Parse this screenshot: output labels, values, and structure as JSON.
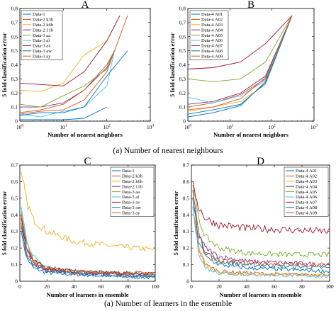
{
  "captions": {
    "top": "(a) Number of nearest neighbours",
    "bottom": "(a) Number of learners in the ensemble"
  },
  "chart_data": [
    {
      "panel": "A",
      "type": "line",
      "title": "A",
      "xlabel": "Number of nearest neighbors",
      "ylabel": "5 fold classification error",
      "xscale": "log",
      "xlim": [
        1,
        1000
      ],
      "ylim": [
        0,
        0.8
      ],
      "xticks": [
        1,
        10,
        100,
        1000
      ],
      "xtick_labels": [
        "10^0",
        "10^1",
        "10^2",
        "10^3"
      ],
      "yticks": [
        0,
        0.1,
        0.2,
        0.3,
        0.4,
        0.5,
        0.6,
        0.7,
        0.8
      ],
      "ytick_labels": [
        "0",
        "0.1",
        "0.2",
        "0.3",
        "0.4",
        "0.5",
        "0.6",
        "0.7",
        "0.8"
      ],
      "legend_position": "top-left",
      "series": [
        {
          "name": "Data-1",
          "color": "#0072BD",
          "x": [
            1,
            3,
            10,
            30,
            100
          ],
          "y": [
            0.01,
            0.01,
            0.01,
            0.02,
            0.1
          ]
        },
        {
          "name": "Data-2 k3b",
          "color": "#D95319",
          "x": [
            1,
            3,
            10,
            30,
            100,
            300
          ],
          "y": [
            0.05,
            0.07,
            0.08,
            0.15,
            0.35,
            0.75
          ]
        },
        {
          "name": "Data-2 k6b",
          "color": "#EDB120",
          "x": [
            1,
            3,
            10,
            30,
            100,
            200
          ],
          "y": [
            0.22,
            0.21,
            0.27,
            0.47,
            0.57,
            0.75
          ]
        },
        {
          "name": "Data-2 11b",
          "color": "#7E2F8E",
          "x": [
            1,
            3,
            10,
            30,
            100,
            150
          ],
          "y": [
            0.1,
            0.1,
            0.13,
            0.22,
            0.38,
            0.5
          ]
        },
        {
          "name": "Data-3 aa",
          "color": "#77AC30",
          "x": [
            1,
            3,
            10,
            30,
            100,
            150
          ],
          "y": [
            0.12,
            0.1,
            0.18,
            0.25,
            0.37,
            0.5
          ]
        },
        {
          "name": "Data-3 al",
          "color": "#4DBEEE",
          "x": [
            1,
            3,
            10,
            30,
            100,
            150
          ],
          "y": [
            0.05,
            0.03,
            0.07,
            0.1,
            0.25,
            0.5
          ]
        },
        {
          "name": "Data-3 av",
          "color": "#A2142F",
          "x": [
            1,
            3,
            10,
            30,
            100,
            200
          ],
          "y": [
            0.27,
            0.26,
            0.25,
            0.35,
            0.57,
            0.75
          ]
        },
        {
          "name": "Data-3 aw",
          "color": "#0072BD",
          "x": [
            1,
            3,
            10,
            30,
            100,
            300
          ],
          "y": [
            0.04,
            0.06,
            0.06,
            0.1,
            0.32,
            0.5
          ]
        },
        {
          "name": "Data-3 ay",
          "color": "#D95319",
          "x": [
            1,
            3,
            10,
            30,
            100,
            150
          ],
          "y": [
            0.06,
            0.08,
            0.12,
            0.22,
            0.4,
            0.5
          ]
        }
      ]
    },
    {
      "panel": "B",
      "type": "line",
      "title": "B",
      "xlabel": "Number of nearest neighbors",
      "ylabel": "5 fold classification error",
      "xscale": "log",
      "xlim": [
        1,
        1000
      ],
      "ylim": [
        0,
        0.8
      ],
      "xticks": [
        1,
        10,
        100,
        1000
      ],
      "xtick_labels": [
        "10^0",
        "10^1",
        "10^2",
        "10^3"
      ],
      "yticks": [
        0,
        0.1,
        0.2,
        0.3,
        0.4,
        0.5,
        0.6,
        0.7,
        0.8
      ],
      "ytick_labels": [
        "0",
        "0.1",
        "0.2",
        "0.3",
        "0.4",
        "0.5",
        "0.6",
        "0.7",
        "0.8"
      ],
      "legend_position": "top-left",
      "series": [
        {
          "name": "Data-4 A01",
          "color": "#0072BD",
          "x": [
            1,
            4,
            18,
            70,
            300
          ],
          "y": [
            0.03,
            0.06,
            0.11,
            0.28,
            0.75
          ]
        },
        {
          "name": "Data-4 A02",
          "color": "#D95319",
          "x": [
            1,
            4,
            18,
            70,
            300
          ],
          "y": [
            0.1,
            0.13,
            0.19,
            0.3,
            0.75
          ]
        },
        {
          "name": "Data-4 A03",
          "color": "#EDB120",
          "x": [
            1,
            4,
            18,
            70,
            300
          ],
          "y": [
            0.07,
            0.1,
            0.14,
            0.26,
            0.75
          ]
        },
        {
          "name": "Data-4 A04",
          "color": "#7E2F8E",
          "x": [
            1,
            4,
            18,
            70,
            300
          ],
          "y": [
            0.12,
            0.14,
            0.2,
            0.32,
            0.75
          ]
        },
        {
          "name": "Data-4 A05",
          "color": "#77AC30",
          "x": [
            1,
            4,
            18,
            70,
            300
          ],
          "y": [
            0.3,
            0.28,
            0.3,
            0.42,
            0.75
          ]
        },
        {
          "name": "Data-4 A06",
          "color": "#4DBEEE",
          "x": [
            1,
            4,
            18,
            70,
            300
          ],
          "y": [
            0.17,
            0.13,
            0.18,
            0.29,
            0.75
          ]
        },
        {
          "name": "Data-4 A07",
          "color": "#A2142F",
          "x": [
            1,
            4,
            18,
            70,
            300
          ],
          "y": [
            0.37,
            0.38,
            0.42,
            0.55,
            0.75
          ]
        },
        {
          "name": "Data-4 A08",
          "color": "#0072BD",
          "x": [
            1,
            4,
            18,
            70,
            300
          ],
          "y": [
            0.05,
            0.08,
            0.12,
            0.27,
            0.75
          ]
        },
        {
          "name": "Data-4 A09",
          "color": "#D95319",
          "x": [
            1,
            4,
            18,
            70,
            300
          ],
          "y": [
            0.08,
            0.1,
            0.16,
            0.31,
            0.75
          ]
        }
      ]
    },
    {
      "panel": "C",
      "type": "line",
      "title": "C",
      "xlabel": "Number of learners in ensemble",
      "ylabel": "5 fold classification error",
      "xlim": [
        0,
        100
      ],
      "ylim": [
        0,
        0.7
      ],
      "xticks": [
        0,
        20,
        40,
        60,
        80,
        100
      ],
      "xtick_labels": [
        "0",
        "20",
        "40",
        "60",
        "80",
        "100"
      ],
      "yticks": [
        0,
        0.1,
        0.2,
        0.3,
        0.4,
        0.5,
        0.6,
        0.7
      ],
      "ytick_labels": [
        "0",
        "0.1",
        "0.2",
        "0.3",
        "0.4",
        "0.5",
        "0.6",
        "0.7"
      ],
      "legend_position": "top-right",
      "noisy": true,
      "series": [
        {
          "name": "Data-1",
          "color": "#0072BD",
          "x": [
            1,
            5,
            10,
            20,
            40,
            70,
            100
          ],
          "y": [
            0.3,
            0.14,
            0.08,
            0.05,
            0.04,
            0.03,
            0.02
          ]
        },
        {
          "name": "Data-2 k3b",
          "color": "#D95319",
          "x": [
            1,
            5,
            10,
            20,
            40,
            70,
            100
          ],
          "y": [
            0.35,
            0.18,
            0.1,
            0.07,
            0.05,
            0.045,
            0.04
          ]
        },
        {
          "name": "Data-2 k6b",
          "color": "#EDB120",
          "x": [
            1,
            5,
            10,
            20,
            40,
            70,
            100
          ],
          "y": [
            0.66,
            0.48,
            0.37,
            0.3,
            0.24,
            0.21,
            0.19
          ]
        },
        {
          "name": "Data-2 11b",
          "color": "#7E2F8E",
          "x": [
            1,
            5,
            10,
            20,
            40,
            70,
            100
          ],
          "y": [
            0.4,
            0.2,
            0.11,
            0.07,
            0.05,
            0.04,
            0.035
          ]
        },
        {
          "name": "Data-3 aa",
          "color": "#77AC30",
          "x": [
            1,
            5,
            10,
            20,
            40,
            70,
            100
          ],
          "y": [
            0.42,
            0.22,
            0.13,
            0.08,
            0.06,
            0.05,
            0.045
          ]
        },
        {
          "name": "Data-3 al",
          "color": "#4DBEEE",
          "x": [
            1,
            5,
            10,
            20,
            40,
            70,
            100
          ],
          "y": [
            0.45,
            0.25,
            0.15,
            0.09,
            0.06,
            0.045,
            0.04
          ]
        },
        {
          "name": "Data-3 av",
          "color": "#A2142F",
          "x": [
            1,
            5,
            10,
            20,
            40,
            70,
            100
          ],
          "y": [
            0.38,
            0.2,
            0.12,
            0.08,
            0.06,
            0.05,
            0.045
          ]
        },
        {
          "name": "Data-3 aw",
          "color": "#0072BD",
          "x": [
            1,
            5,
            10,
            20,
            40,
            70,
            100
          ],
          "y": [
            0.33,
            0.17,
            0.1,
            0.06,
            0.045,
            0.035,
            0.03
          ]
        },
        {
          "name": "Data-3 ay",
          "color": "#D95319",
          "x": [
            1,
            5,
            10,
            20,
            40,
            70,
            100
          ],
          "y": [
            0.4,
            0.21,
            0.12,
            0.08,
            0.06,
            0.05,
            0.05
          ]
        }
      ]
    },
    {
      "panel": "D",
      "type": "line",
      "title": "D",
      "xlabel": "Number of learners in ensemble",
      "ylabel": "5 fold classification error",
      "xlim": [
        0,
        100
      ],
      "ylim": [
        0,
        0.7
      ],
      "xticks": [
        0,
        20,
        40,
        60,
        80,
        100
      ],
      "xtick_labels": [
        "0",
        "20",
        "40",
        "60",
        "80",
        "100"
      ],
      "yticks": [
        0,
        0.1,
        0.2,
        0.3,
        0.4,
        0.5,
        0.6,
        0.7
      ],
      "ytick_labels": [
        "0",
        "0.1",
        "0.2",
        "0.3",
        "0.4",
        "0.5",
        "0.6",
        "0.7"
      ],
      "legend_position": "top-right",
      "noisy": true,
      "series": [
        {
          "name": "Data-4 A01",
          "color": "#0072BD",
          "x": [
            1,
            5,
            10,
            20,
            40,
            70,
            100
          ],
          "y": [
            0.5,
            0.28,
            0.18,
            0.12,
            0.1,
            0.09,
            0.08
          ]
        },
        {
          "name": "Data-4 A02",
          "color": "#D95319",
          "x": [
            1,
            5,
            10,
            20,
            40,
            70,
            100
          ],
          "y": [
            0.45,
            0.2,
            0.1,
            0.06,
            0.05,
            0.04,
            0.04
          ]
        },
        {
          "name": "Data-4 A03",
          "color": "#EDB120",
          "x": [
            1,
            5,
            10,
            20,
            40,
            70,
            100
          ],
          "y": [
            0.45,
            0.22,
            0.1,
            0.05,
            0.04,
            0.04,
            0.035
          ]
        },
        {
          "name": "Data-4 A04",
          "color": "#7E2F8E",
          "x": [
            1,
            5,
            10,
            20,
            40,
            70,
            100
          ],
          "y": [
            0.55,
            0.3,
            0.2,
            0.15,
            0.12,
            0.11,
            0.1
          ]
        },
        {
          "name": "Data-4 A05",
          "color": "#77AC30",
          "x": [
            1,
            5,
            10,
            20,
            40,
            70,
            100
          ],
          "y": [
            0.58,
            0.38,
            0.27,
            0.2,
            0.17,
            0.16,
            0.16
          ]
        },
        {
          "name": "Data-4 A06",
          "color": "#4DBEEE",
          "x": [
            1,
            5,
            10,
            20,
            40,
            70,
            100
          ],
          "y": [
            0.45,
            0.18,
            0.08,
            0.05,
            0.04,
            0.035,
            0.03
          ]
        },
        {
          "name": "Data-4 A07",
          "color": "#A2142F",
          "x": [
            1,
            5,
            10,
            20,
            40,
            70,
            100
          ],
          "y": [
            0.6,
            0.45,
            0.38,
            0.34,
            0.32,
            0.31,
            0.3
          ]
        },
        {
          "name": "Data-4 A08",
          "color": "#0072BD",
          "x": [
            1,
            5,
            10,
            20,
            40,
            70,
            100
          ],
          "y": [
            0.5,
            0.25,
            0.15,
            0.1,
            0.08,
            0.07,
            0.06
          ]
        },
        {
          "name": "Data-4 A09",
          "color": "#D95319",
          "x": [
            1,
            5,
            10,
            20,
            40,
            70,
            100
          ],
          "y": [
            0.55,
            0.3,
            0.17,
            0.12,
            0.11,
            0.1,
            0.1
          ]
        }
      ]
    }
  ]
}
